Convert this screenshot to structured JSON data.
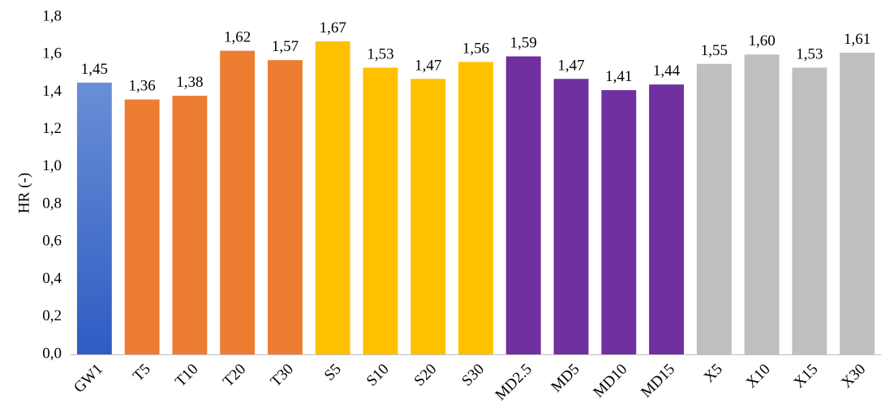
{
  "chart_data": {
    "type": "bar",
    "title": "",
    "xlabel": "",
    "ylabel": "HR (-)",
    "ylim": [
      0,
      1.8
    ],
    "yticks": [
      "0,0",
      "0,2",
      "0,4",
      "0,6",
      "0,8",
      "1,0",
      "1,2",
      "1,4",
      "1,6",
      "1,8"
    ],
    "grid": false,
    "legend": "none",
    "categories": [
      "GW1",
      "T5",
      "T10",
      "T20",
      "T30",
      "S5",
      "S10",
      "S20",
      "S30",
      "MD2.5",
      "MD5",
      "MD10",
      "MD15",
      "X5",
      "X10",
      "X15",
      "X30"
    ],
    "values": [
      1.45,
      1.36,
      1.38,
      1.62,
      1.57,
      1.67,
      1.53,
      1.47,
      1.56,
      1.59,
      1.47,
      1.41,
      1.44,
      1.55,
      1.6,
      1.53,
      1.61
    ],
    "value_labels": [
      "1,45",
      "1,36",
      "1,38",
      "1,62",
      "1,57",
      "1,67",
      "1,53",
      "1,47",
      "1,56",
      "1,59",
      "1,47",
      "1,41",
      "1,44",
      "1,55",
      "1,60",
      "1,53",
      "1,61"
    ],
    "bar_colors": [
      "gradient-blue",
      "#ED7D31",
      "#ED7D31",
      "#ED7D31",
      "#ED7D31",
      "#FFC000",
      "#FFC000",
      "#FFC000",
      "#FFC000",
      "#7030A0",
      "#7030A0",
      "#7030A0",
      "#7030A0",
      "#BFBFBF",
      "#BFBFBF",
      "#BFBFBF",
      "#BFBFBF"
    ],
    "gradient_blue": [
      "#6A8FD6",
      "#2E5CC2"
    ]
  }
}
